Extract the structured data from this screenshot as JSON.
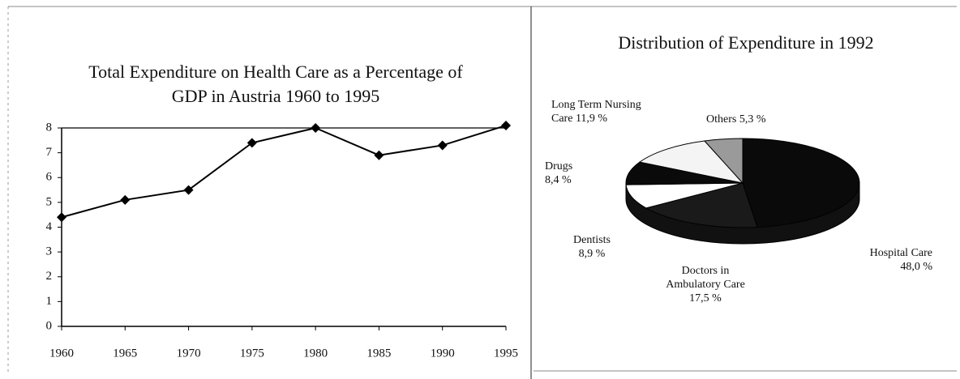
{
  "chart_data": [
    {
      "type": "line",
      "title": "Total Expenditure on Health Care as a Percentage of GDP in Austria 1960 to 1995",
      "x": [
        1960,
        1965,
        1970,
        1975,
        1980,
        1985,
        1990,
        1995
      ],
      "values": [
        4.4,
        5.1,
        5.5,
        7.4,
        8.0,
        6.9,
        7.3,
        8.1
      ],
      "color": "#000000",
      "xlim": [
        1960,
        1995
      ],
      "xticks": [
        1960,
        1965,
        1970,
        1975,
        1980,
        1985,
        1990,
        1995
      ],
      "ylim": [
        0,
        8
      ],
      "yticks": [
        0,
        1,
        2,
        3,
        4,
        5,
        6,
        7,
        8
      ]
    },
    {
      "type": "pie",
      "title": "Distribution of Expenditure in 1992",
      "categories": [
        "Hospital Care",
        "Doctors in Ambulatory Care",
        "Dentists",
        "Drugs",
        "Long Term Nursing Care",
        "Others"
      ],
      "values": [
        48.0,
        17.5,
        8.9,
        8.4,
        11.9,
        5.3
      ],
      "value_labels": [
        "48,0 %",
        "17,5 %",
        "8,9 %",
        "8,4 %",
        "11,9 %",
        "5,3 %"
      ],
      "colors": [
        "#0a0a0a",
        "#1a1a1a",
        "#ffffff",
        "#0a0a0a",
        "#f4f4f4",
        "#9a9a9a"
      ]
    }
  ]
}
